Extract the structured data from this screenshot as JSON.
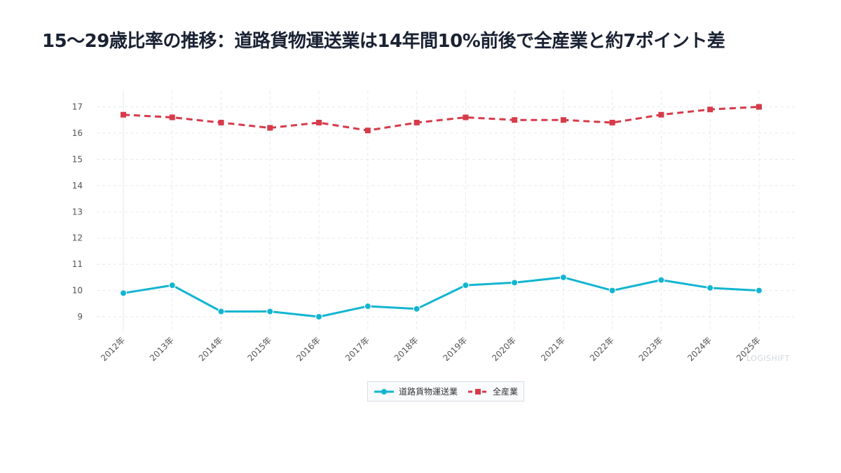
{
  "title": "15〜29歳比率の推移：道路貨物運送業は14年間10%前後で全産業と約7ポイント差",
  "watermark": "LOGISHIFT",
  "chart_data": {
    "type": "line",
    "title": "15〜29歳比率の推移：道路貨物運送業は14年間10%前後で全産業と約7ポイント差",
    "xlabel": "",
    "ylabel": "",
    "categories": [
      "2012年",
      "2013年",
      "2014年",
      "2015年",
      "2016年",
      "2017年",
      "2018年",
      "2019年",
      "2020年",
      "2021年",
      "2022年",
      "2023年",
      "2024年",
      "2025年"
    ],
    "yticks": [
      9,
      10,
      11,
      12,
      13,
      14,
      15,
      16,
      17
    ],
    "ylim": [
      8.4,
      17.6
    ],
    "grid": true,
    "legend_position": "bottom-center",
    "series": [
      {
        "name": "道路貨物運送業",
        "color": "#13b5d0",
        "line_style": "solid",
        "marker": "circle",
        "values": [
          9.9,
          10.2,
          9.2,
          9.2,
          9.0,
          9.4,
          9.3,
          10.2,
          10.3,
          10.5,
          10.0,
          10.4,
          10.1,
          10.0
        ]
      },
      {
        "name": "全産業",
        "color": "#d63b4a",
        "line_style": "dashed",
        "marker": "square",
        "values": [
          16.7,
          16.6,
          16.4,
          16.2,
          16.4,
          16.1,
          16.4,
          16.6,
          16.5,
          16.5,
          16.4,
          16.7,
          16.9,
          17.0
        ]
      }
    ]
  }
}
